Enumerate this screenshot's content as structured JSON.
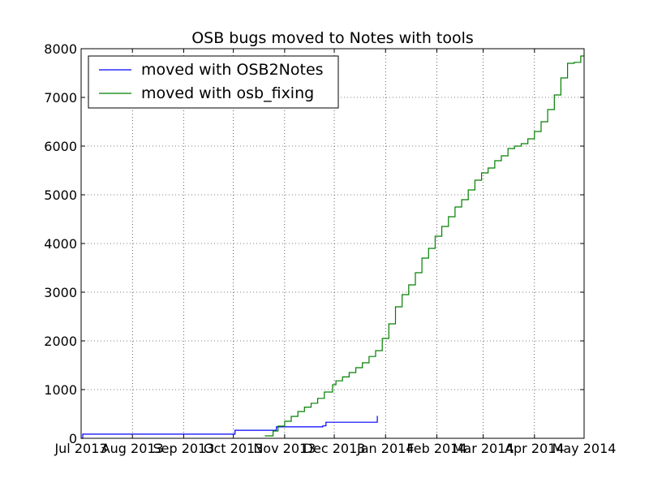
{
  "chart_data": {
    "type": "line",
    "title": "OSB bugs moved to Notes with tools",
    "xlabel": "",
    "ylabel": "",
    "xlim": [
      "2013-07-01",
      "2014-05-01"
    ],
    "ylim": [
      0,
      8000
    ],
    "grid": true,
    "legend_position": "top-left",
    "x_tick_labels": [
      "Jul 2013",
      "Aug 2013",
      "Sep 2013",
      "Oct 2013",
      "Nov 2013",
      "Dec 2013",
      "Jan 2014",
      "Feb 2014",
      "Mar 2014",
      "Apr 2014",
      "May 2014"
    ],
    "x_ticks": [
      "2013-07-01",
      "2013-08-01",
      "2013-09-01",
      "2013-10-01",
      "2013-11-01",
      "2013-12-01",
      "2014-01-01",
      "2014-02-01",
      "2014-03-01",
      "2014-04-01",
      "2014-05-01"
    ],
    "y_tick_labels": [
      "0",
      "1000",
      "2000",
      "3000",
      "4000",
      "5000",
      "6000",
      "7000",
      "8000"
    ],
    "y_ticks": [
      0,
      1000,
      2000,
      3000,
      4000,
      5000,
      6000,
      7000,
      8000
    ],
    "series": [
      {
        "name": "moved with OSB2Notes",
        "color": "#0000ff",
        "x": [
          "2013-07-01",
          "2013-07-02",
          "2013-10-01",
          "2013-10-02",
          "2013-10-26",
          "2013-10-27",
          "2013-11-20",
          "2013-11-24",
          "2013-11-26",
          "2013-12-26",
          "2013-12-27"
        ],
        "y": [
          0,
          85,
          85,
          165,
          165,
          235,
          235,
          255,
          330,
          330,
          460
        ]
      },
      {
        "name": "moved with osb_fixing",
        "color": "#008000",
        "x": [
          "2013-10-20",
          "2013-10-25",
          "2013-10-28",
          "2013-11-01",
          "2013-11-05",
          "2013-11-09",
          "2013-11-13",
          "2013-11-17",
          "2013-11-21",
          "2013-11-25",
          "2013-11-30",
          "2013-12-02",
          "2013-12-06",
          "2013-12-10",
          "2013-12-14",
          "2013-12-18",
          "2013-12-22",
          "2013-12-26",
          "2013-12-30",
          "2014-01-03",
          "2014-01-07",
          "2014-01-11",
          "2014-01-15",
          "2014-01-19",
          "2014-01-23",
          "2014-01-27",
          "2014-01-31",
          "2014-02-04",
          "2014-02-08",
          "2014-02-12",
          "2014-02-16",
          "2014-02-20",
          "2014-02-24",
          "2014-02-28",
          "2014-03-04",
          "2014-03-08",
          "2014-03-12",
          "2014-03-16",
          "2014-03-20",
          "2014-03-24",
          "2014-03-28",
          "2014-04-01",
          "2014-04-05",
          "2014-04-09",
          "2014-04-13",
          "2014-04-17",
          "2014-04-21",
          "2014-04-25",
          "2014-04-29",
          "2014-05-01"
        ],
        "y": [
          50,
          150,
          250,
          350,
          450,
          550,
          640,
          720,
          820,
          950,
          1100,
          1180,
          1260,
          1350,
          1450,
          1550,
          1680,
          1800,
          2050,
          2350,
          2700,
          2950,
          3150,
          3400,
          3700,
          3900,
          4150,
          4350,
          4550,
          4750,
          4900,
          5100,
          5300,
          5450,
          5550,
          5700,
          5800,
          5950,
          6000,
          6050,
          6150,
          6300,
          6500,
          6750,
          7050,
          7400,
          7700,
          7720,
          7850,
          7850
        ]
      }
    ]
  }
}
